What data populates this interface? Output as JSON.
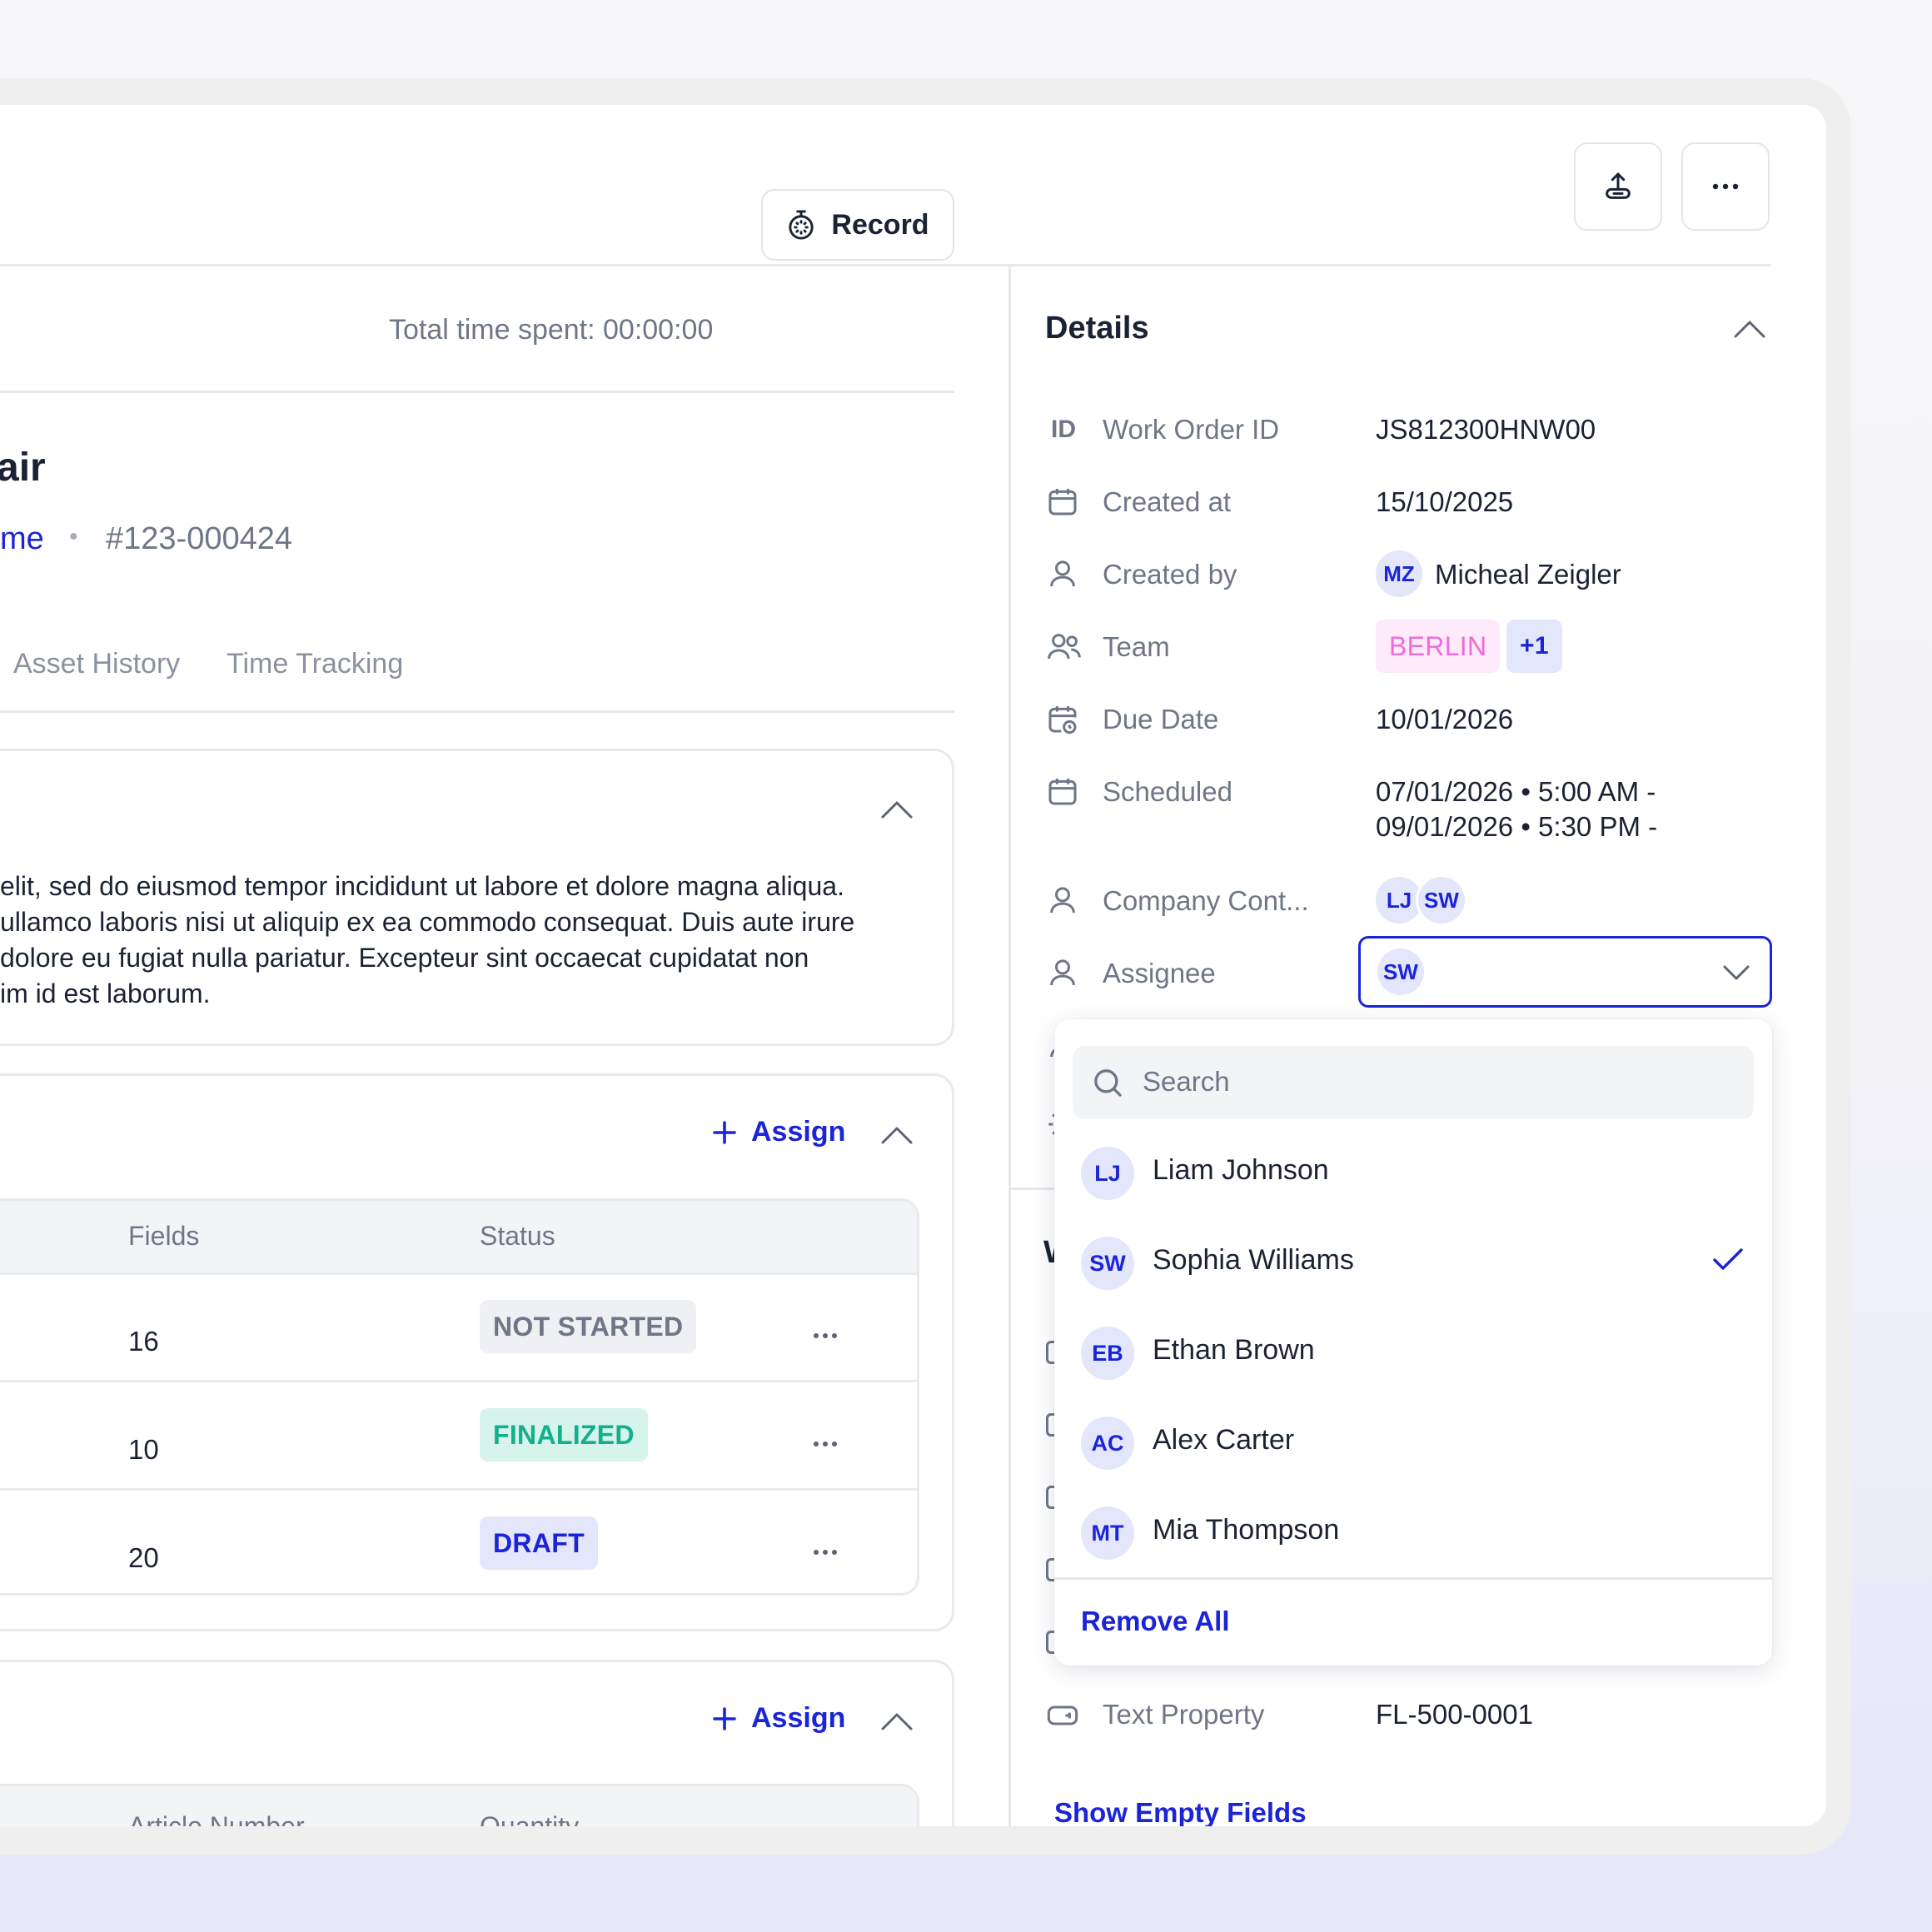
{
  "header": {
    "export_icon": "export-upload-icon",
    "more_icon": "more-horizontal-icon"
  },
  "left": {
    "total_time_label": "Total time spent: 00:00:00",
    "record_label": "Record",
    "title_fragment": "air",
    "asset_link_fragment": "me",
    "separator": "•",
    "work_order_number": "#123-000424",
    "tabs": [
      "Asset History",
      "Time Tracking"
    ],
    "description_lines": [
      "elit, sed do eiusmod tempor incididunt ut labore et dolore magna aliqua.",
      "ullamco laboris nisi ut aliquip ex ea commodo consequat. Duis aute irure",
      "dolore eu fugiat nulla pariatur. Excepteur sint occaecat cupidatat non",
      "im id est laborum."
    ],
    "assign_label": "Assign",
    "table": {
      "columns": [
        "Fields",
        "Status"
      ],
      "rows": [
        {
          "fields": "16",
          "status": "NOT STARTED",
          "status_color": "#6e7687",
          "status_bg": "#eef0f3"
        },
        {
          "fields": "10",
          "status": "FINALIZED",
          "status_color": "#14b08c",
          "status_bg": "#d6f3ec"
        },
        {
          "fields": "20",
          "status": "DRAFT",
          "status_color": "#1b24d6",
          "status_bg": "#e4e6fb"
        }
      ]
    },
    "assign_label_2": "Assign",
    "table2": {
      "columns": [
        "Article Number",
        "Quantity"
      ]
    }
  },
  "details": {
    "title": "Details",
    "rows": {
      "id": {
        "icon_text": "ID",
        "label": "Work Order ID",
        "value": "JS812300HNW00"
      },
      "created_at": {
        "label": "Created at",
        "value": "15/10/2025"
      },
      "created_by": {
        "label": "Created by",
        "avatar": "MZ",
        "value": "Micheal Zeigler"
      },
      "team": {
        "label": "Team",
        "tag": "BERLIN",
        "extra": "+1"
      },
      "due_date": {
        "label": "Due Date",
        "value": "10/01/2026"
      },
      "scheduled": {
        "label": "Scheduled",
        "line1": "07/01/2026 • 5:00 AM -",
        "line2": "09/01/2026 • 5:30 PM -"
      },
      "company_contact": {
        "label": "Company Cont...",
        "avatars": [
          "LJ",
          "SW"
        ]
      },
      "assignee": {
        "label": "Assignee",
        "avatar": "SW"
      },
      "text_property": {
        "label": "Text Property",
        "value": "FL-500-0001"
      }
    },
    "show_empty_fields": "Show Empty Fields",
    "accent_color": "#1b24d6"
  },
  "assignee_dropdown": {
    "search_placeholder": "Search",
    "options": [
      {
        "initials": "LJ",
        "name": "Liam Johnson",
        "selected": false
      },
      {
        "initials": "SW",
        "name": "Sophia Williams",
        "selected": true
      },
      {
        "initials": "EB",
        "name": "Ethan Brown",
        "selected": false
      },
      {
        "initials": "AC",
        "name": "Alex Carter",
        "selected": false
      },
      {
        "initials": "MT",
        "name": "Mia Thompson",
        "selected": false
      }
    ],
    "remove_all": "Remove All"
  }
}
